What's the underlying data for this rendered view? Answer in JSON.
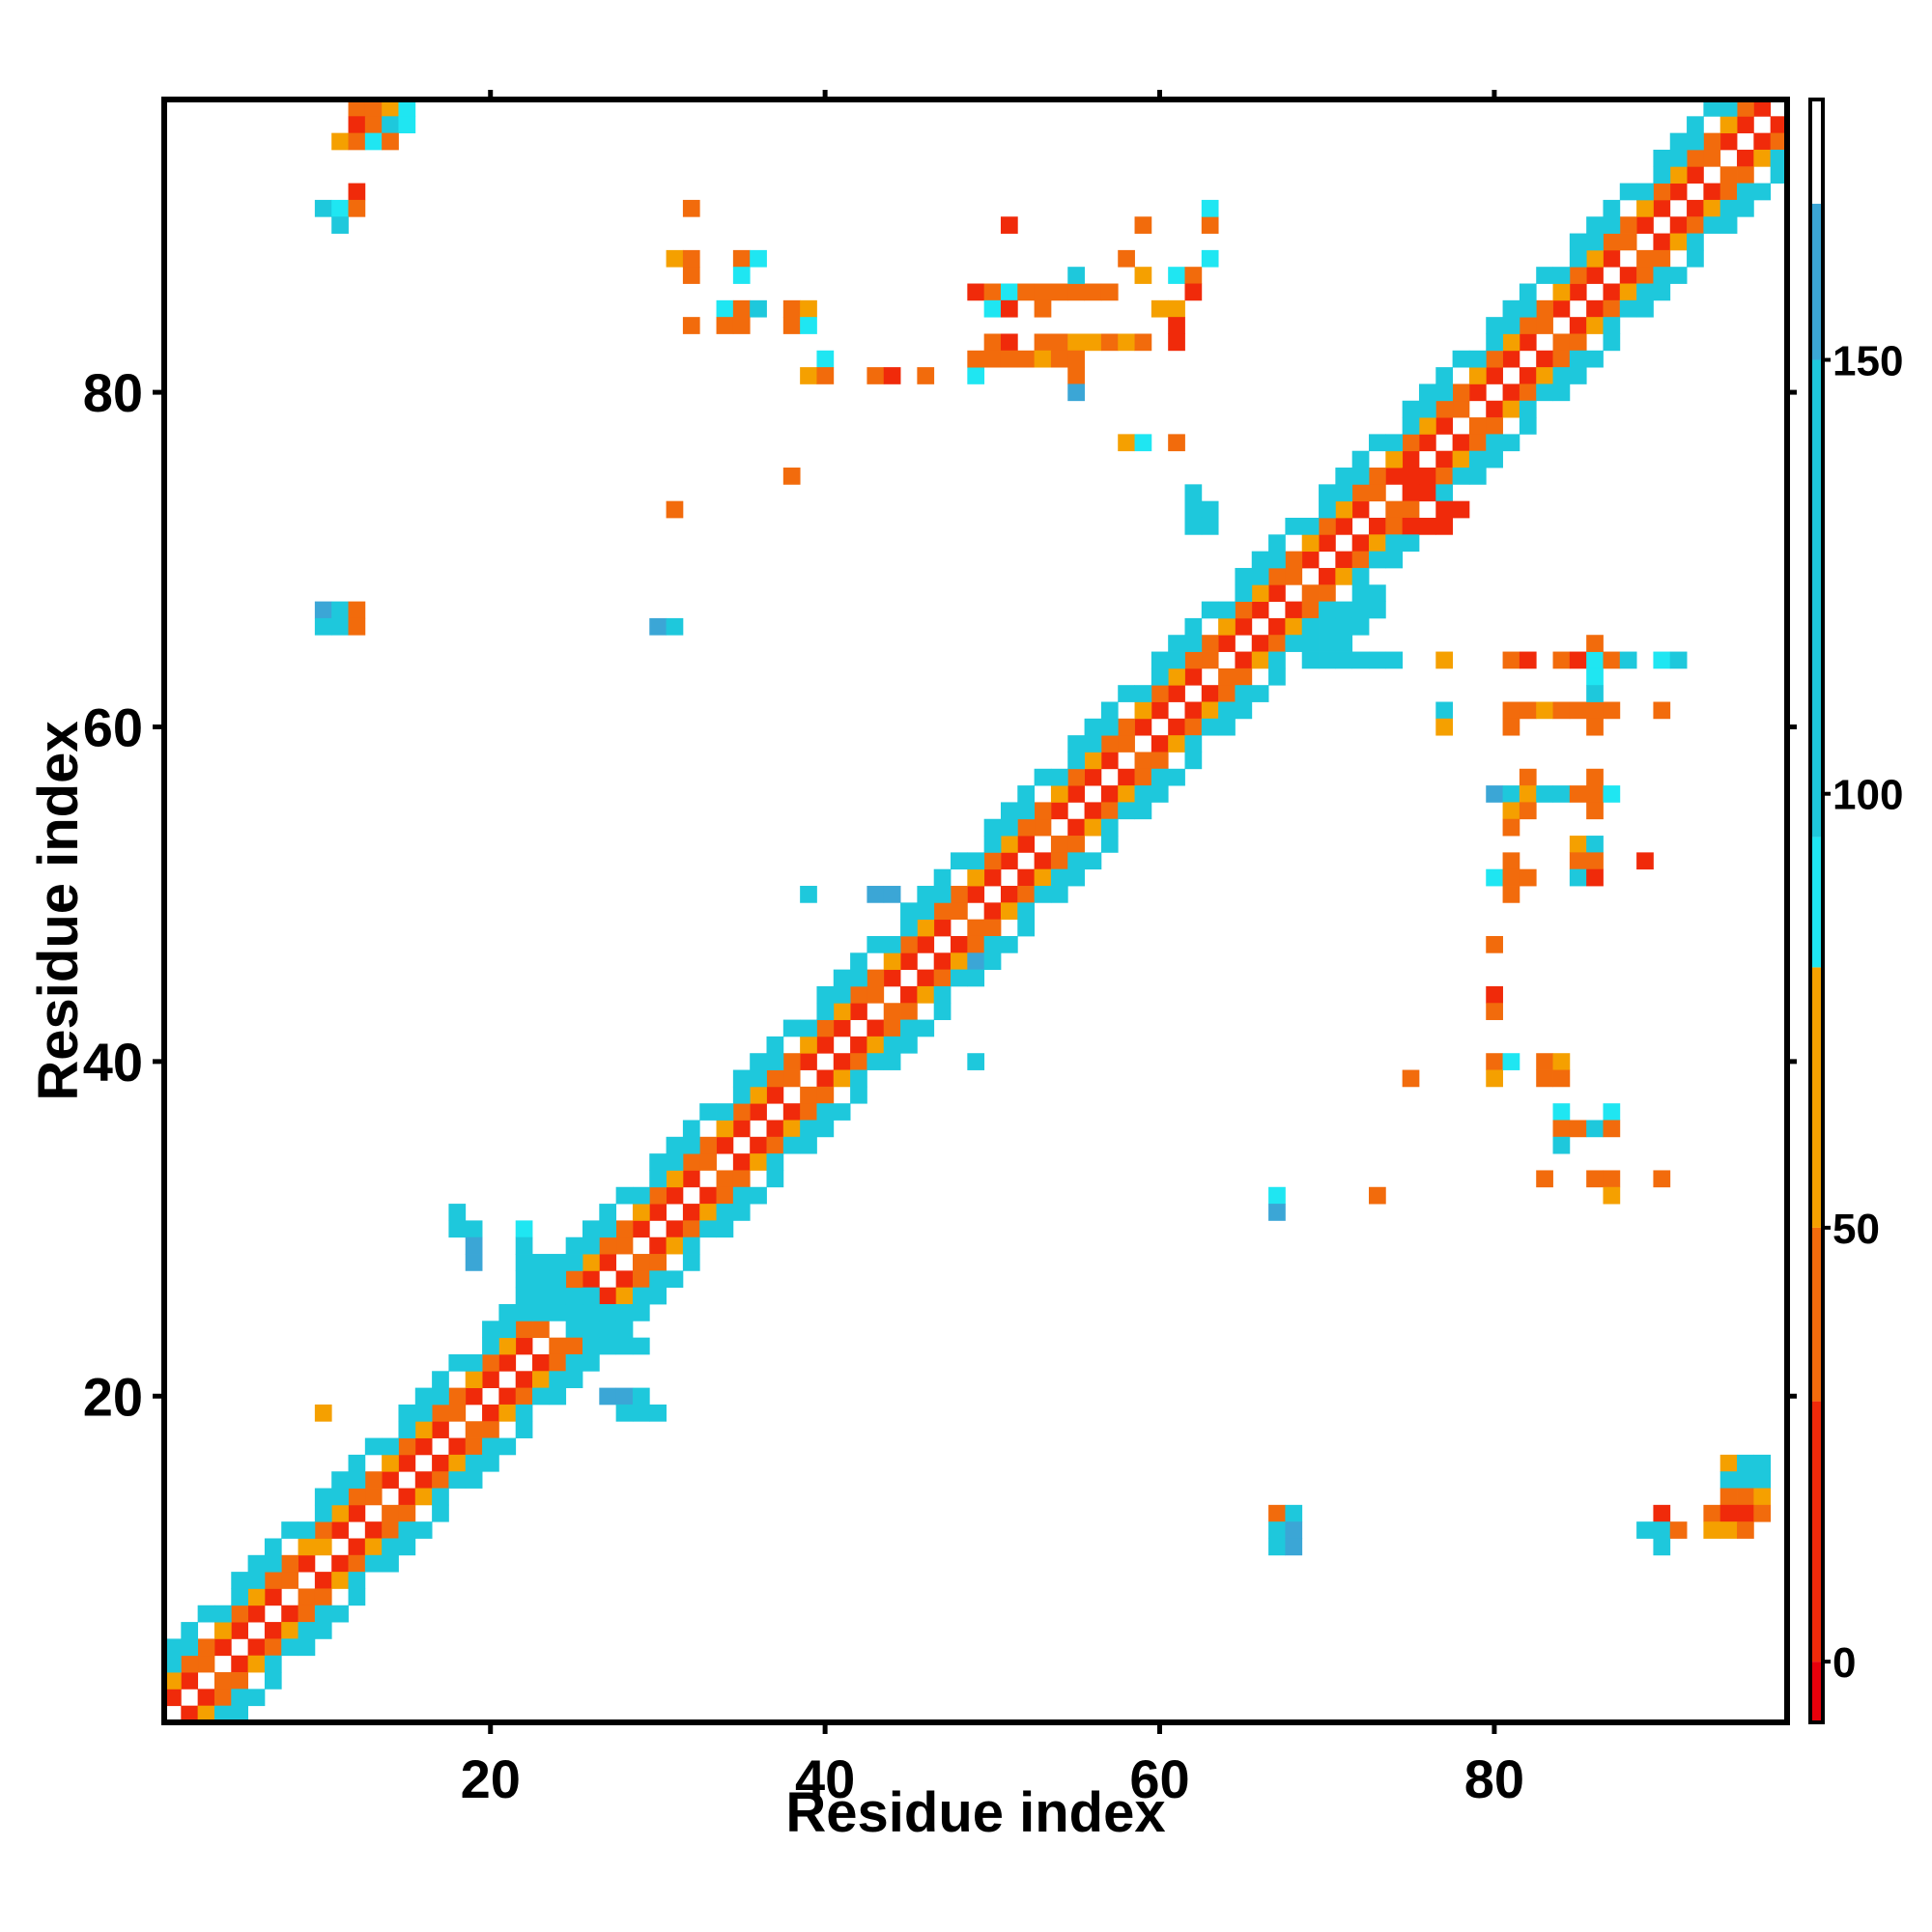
{
  "chart_data": {
    "type": "heatmap",
    "title": "",
    "xlabel": "Residue index",
    "ylabel": "Residue index",
    "xlim": [
      0.5,
      97.5
    ],
    "ylim": [
      0.5,
      97.5
    ],
    "x_ticks": [
      20,
      40,
      60,
      80
    ],
    "y_ticks": [
      20,
      40,
      60,
      80
    ],
    "colorbar": {
      "range": [
        -7,
        180
      ],
      "ticks": [
        0,
        50,
        100,
        150
      ],
      "bands": [
        {
          "from": -7,
          "to": 0,
          "color": "#e8000b"
        },
        {
          "from": 0,
          "to": 30,
          "color": "#f02a0a"
        },
        {
          "from": 30,
          "to": 50,
          "color": "#f26b0c"
        },
        {
          "from": 50,
          "to": 80,
          "color": "#f5a000"
        },
        {
          "from": 80,
          "to": 95,
          "color": "#1fe6f2"
        },
        {
          "from": 95,
          "to": 150,
          "color": "#1ec8dc"
        },
        {
          "from": 150,
          "to": 168,
          "color": "#3ba6d6"
        },
        {
          "from": 168,
          "to": 180,
          "color": "#ffffff"
        }
      ]
    },
    "grid": false,
    "diagonal_bands": [
      {
        "offset": 1,
        "value": 20
      },
      {
        "offset": 2,
        "value": 45
      },
      {
        "offset": 3,
        "value": 100
      },
      {
        "offset": 4,
        "value": 115
      }
    ],
    "cells": [
      [
        12,
        97,
        30
      ],
      [
        13,
        97,
        45
      ],
      [
        14,
        97,
        60
      ],
      [
        15,
        97,
        90
      ],
      [
        12,
        96,
        20
      ],
      [
        13,
        96,
        45
      ],
      [
        14,
        96,
        100
      ],
      [
        15,
        96,
        90
      ],
      [
        11,
        95,
        60
      ],
      [
        12,
        95,
        45
      ],
      [
        13,
        95,
        90
      ],
      [
        14,
        95,
        45
      ],
      [
        12,
        92,
        20
      ],
      [
        10,
        91,
        100
      ],
      [
        11,
        91,
        90
      ],
      [
        12,
        91,
        45
      ],
      [
        11,
        90,
        95
      ],
      [
        32,
        91,
        45
      ],
      [
        31,
        88,
        55
      ],
      [
        32,
        88,
        45
      ],
      [
        35,
        88,
        45
      ],
      [
        36,
        88,
        90
      ],
      [
        32,
        87,
        45
      ],
      [
        35,
        87,
        90
      ],
      [
        34,
        85,
        90
      ],
      [
        35,
        85,
        45
      ],
      [
        36,
        85,
        95
      ],
      [
        38,
        85,
        45
      ],
      [
        39,
        85,
        60
      ],
      [
        38,
        84,
        45
      ],
      [
        39,
        84,
        90
      ],
      [
        32,
        84,
        45
      ],
      [
        34,
        84,
        45
      ],
      [
        35,
        84,
        45
      ],
      [
        40,
        82,
        90
      ],
      [
        39,
        81,
        60
      ],
      [
        40,
        81,
        45
      ],
      [
        43,
        81,
        45
      ],
      [
        44,
        81,
        20
      ],
      [
        46,
        81,
        45
      ],
      [
        49,
        81,
        90
      ],
      [
        49,
        86,
        20
      ],
      [
        50,
        86,
        45
      ],
      [
        51,
        86,
        90
      ],
      [
        52,
        86,
        45
      ],
      [
        53,
        86,
        45
      ],
      [
        54,
        86,
        45
      ],
      [
        55,
        86,
        45
      ],
      [
        56,
        86,
        45
      ],
      [
        57,
        86,
        45
      ],
      [
        55,
        87,
        95
      ],
      [
        59,
        87,
        60
      ],
      [
        61,
        87,
        90
      ],
      [
        62,
        87,
        45
      ],
      [
        62,
        86,
        20
      ],
      [
        60,
        85,
        60
      ],
      [
        61,
        85,
        55
      ],
      [
        63,
        88,
        90
      ],
      [
        58,
        88,
        45
      ],
      [
        53,
        85,
        45
      ],
      [
        50,
        85,
        90
      ],
      [
        51,
        85,
        20
      ],
      [
        50,
        83,
        45
      ],
      [
        51,
        83,
        20
      ],
      [
        53,
        83,
        45
      ],
      [
        54,
        83,
        45
      ],
      [
        55,
        83,
        60
      ],
      [
        56,
        83,
        60
      ],
      [
        57,
        83,
        45
      ],
      [
        58,
        83,
        60
      ],
      [
        59,
        83,
        45
      ],
      [
        61,
        84,
        20
      ],
      [
        61,
        83,
        20
      ],
      [
        49,
        82,
        45
      ],
      [
        50,
        82,
        45
      ],
      [
        51,
        82,
        45
      ],
      [
        52,
        82,
        45
      ],
      [
        53,
        82,
        60
      ],
      [
        54,
        82,
        45
      ],
      [
        55,
        82,
        45
      ],
      [
        55,
        81,
        45
      ],
      [
        55,
        80,
        160
      ],
      [
        51,
        90,
        20
      ],
      [
        59,
        90,
        45
      ],
      [
        63,
        90,
        45
      ],
      [
        63,
        91,
        90
      ],
      [
        58,
        77,
        60
      ],
      [
        59,
        77,
        90
      ],
      [
        61,
        77,
        45
      ],
      [
        38,
        75,
        45
      ],
      [
        31,
        73,
        45
      ],
      [
        10,
        67,
        160
      ],
      [
        11,
        67,
        100
      ],
      [
        12,
        67,
        45
      ],
      [
        10,
        66,
        100
      ],
      [
        11,
        66,
        100
      ],
      [
        12,
        66,
        45
      ],
      [
        30,
        66,
        160
      ],
      [
        31,
        66,
        100
      ],
      [
        62,
        74,
        100
      ],
      [
        62,
        73,
        100
      ],
      [
        63,
        73,
        100
      ],
      [
        62,
        72,
        100
      ],
      [
        63,
        72,
        100
      ],
      [
        67,
        70,
        95
      ],
      [
        66,
        70,
        100
      ],
      [
        66,
        69,
        100
      ],
      [
        65,
        68,
        100
      ],
      [
        72,
        68,
        100
      ],
      [
        73,
        68,
        100
      ],
      [
        72,
        67,
        100
      ],
      [
        73,
        67,
        100
      ],
      [
        71,
        66,
        100
      ],
      [
        72,
        66,
        100
      ],
      [
        70,
        65,
        100
      ],
      [
        71,
        65,
        100
      ],
      [
        69,
        64,
        100
      ],
      [
        70,
        64,
        100
      ],
      [
        71,
        64,
        100
      ],
      [
        72,
        64,
        100
      ],
      [
        73,
        64,
        100
      ],
      [
        74,
        64,
        100
      ],
      [
        77,
        64,
        60
      ],
      [
        81,
        64,
        45
      ],
      [
        82,
        64,
        20
      ],
      [
        84,
        64,
        45
      ],
      [
        85,
        64,
        20
      ],
      [
        86,
        64,
        90
      ],
      [
        87,
        64,
        45
      ],
      [
        88,
        64,
        100
      ],
      [
        90,
        64,
        90
      ],
      [
        91,
        64,
        95
      ],
      [
        86,
        65,
        45
      ],
      [
        86,
        63,
        90
      ],
      [
        77,
        61,
        95
      ],
      [
        77,
        60,
        60
      ],
      [
        81,
        61,
        45
      ],
      [
        82,
        61,
        45
      ],
      [
        83,
        61,
        60
      ],
      [
        84,
        61,
        45
      ],
      [
        85,
        61,
        45
      ],
      [
        86,
        61,
        45
      ],
      [
        87,
        61,
        45
      ],
      [
        90,
        61,
        45
      ],
      [
        81,
        60,
        45
      ],
      [
        86,
        60,
        45
      ],
      [
        86,
        62,
        95
      ],
      [
        82,
        57,
        45
      ],
      [
        86,
        57,
        45
      ],
      [
        80,
        56,
        160
      ],
      [
        81,
        56,
        100
      ],
      [
        82,
        56,
        60
      ],
      [
        83,
        56,
        100
      ],
      [
        84,
        56,
        100
      ],
      [
        85,
        56,
        45
      ],
      [
        86,
        56,
        45
      ],
      [
        87,
        56,
        90
      ],
      [
        81,
        55,
        60
      ],
      [
        82,
        55,
        45
      ],
      [
        86,
        55,
        45
      ],
      [
        81,
        54,
        45
      ],
      [
        85,
        53,
        60
      ],
      [
        86,
        53,
        95
      ],
      [
        81,
        52,
        45
      ],
      [
        85,
        52,
        45
      ],
      [
        86,
        52,
        45
      ],
      [
        89,
        52,
        20
      ],
      [
        80,
        51,
        90
      ],
      [
        81,
        51,
        45
      ],
      [
        82,
        51,
        45
      ],
      [
        85,
        51,
        95
      ],
      [
        86,
        51,
        20
      ],
      [
        81,
        50,
        45
      ],
      [
        80,
        47,
        45
      ],
      [
        80,
        44,
        20
      ],
      [
        80,
        43,
        45
      ],
      [
        80,
        40,
        45
      ],
      [
        80,
        39,
        60
      ],
      [
        81,
        40,
        90
      ],
      [
        83,
        40,
        45
      ],
      [
        84,
        40,
        60
      ],
      [
        83,
        39,
        45
      ],
      [
        84,
        39,
        45
      ],
      [
        75,
        39,
        45
      ],
      [
        84,
        37,
        90
      ],
      [
        84,
        36,
        45
      ],
      [
        85,
        36,
        45
      ],
      [
        84,
        35,
        100
      ],
      [
        87,
        37,
        90
      ],
      [
        86,
        36,
        95
      ],
      [
        87,
        36,
        45
      ],
      [
        83,
        33,
        45
      ],
      [
        86,
        33,
        45
      ],
      [
        87,
        33,
        45
      ],
      [
        87,
        32,
        60
      ],
      [
        90,
        33,
        45
      ],
      [
        73,
        32,
        45
      ],
      [
        67,
        32,
        90
      ],
      [
        67,
        31,
        160
      ],
      [
        49,
        46,
        160
      ],
      [
        49,
        45,
        100
      ],
      [
        49,
        40,
        100
      ],
      [
        39,
        50,
        95
      ],
      [
        43,
        50,
        160
      ],
      [
        44,
        50,
        160
      ],
      [
        18,
        31,
        95
      ],
      [
        18,
        30,
        100
      ],
      [
        19,
        30,
        100
      ],
      [
        19,
        29,
        160
      ],
      [
        19,
        28,
        160
      ],
      [
        22,
        30,
        90
      ],
      [
        22,
        29,
        100
      ],
      [
        22,
        28,
        100
      ],
      [
        23,
        28,
        100
      ],
      [
        24,
        28,
        100
      ],
      [
        22,
        27,
        100
      ],
      [
        23,
        27,
        100
      ],
      [
        24,
        27,
        100
      ],
      [
        22,
        26,
        100
      ],
      [
        23,
        26,
        100
      ],
      [
        24,
        26,
        100
      ],
      [
        25,
        26,
        100
      ],
      [
        26,
        26,
        100
      ],
      [
        23,
        25,
        100
      ],
      [
        24,
        25,
        100
      ],
      [
        25,
        25,
        100
      ],
      [
        26,
        25,
        100
      ],
      [
        27,
        25,
        100
      ],
      [
        25,
        24,
        100
      ],
      [
        26,
        24,
        100
      ],
      [
        27,
        24,
        100
      ],
      [
        28,
        24,
        100
      ],
      [
        26,
        23,
        100
      ],
      [
        27,
        23,
        100
      ],
      [
        28,
        23,
        100
      ],
      [
        29,
        23,
        100
      ],
      [
        27,
        20,
        160
      ],
      [
        28,
        20,
        160
      ],
      [
        29,
        20,
        100
      ],
      [
        28,
        19,
        95
      ],
      [
        29,
        19,
        100
      ],
      [
        30,
        19,
        95
      ],
      [
        10,
        19,
        60
      ],
      [
        10,
        11,
        60
      ],
      [
        67,
        13,
        45
      ],
      [
        68,
        13,
        95
      ],
      [
        67,
        12,
        100
      ],
      [
        68,
        12,
        160
      ],
      [
        67,
        11,
        100
      ],
      [
        68,
        11,
        160
      ],
      [
        90,
        13,
        20
      ],
      [
        89,
        12,
        95
      ],
      [
        90,
        12,
        100
      ],
      [
        91,
        12,
        45
      ],
      [
        90,
        11,
        95
      ],
      [
        94,
        16,
        60
      ],
      [
        95,
        16,
        95
      ],
      [
        96,
        16,
        100
      ],
      [
        94,
        15,
        100
      ],
      [
        95,
        15,
        100
      ],
      [
        96,
        15,
        100
      ],
      [
        94,
        14,
        45
      ],
      [
        95,
        14,
        45
      ],
      [
        96,
        14,
        60
      ],
      [
        93,
        13,
        45
      ],
      [
        94,
        13,
        20
      ],
      [
        95,
        13,
        20
      ],
      [
        96,
        13,
        45
      ],
      [
        93,
        12,
        60
      ],
      [
        94,
        12,
        60
      ],
      [
        95,
        12,
        45
      ],
      [
        74,
        75,
        20
      ],
      [
        75,
        75,
        20
      ],
      [
        76,
        74,
        20
      ],
      [
        77,
        73,
        20
      ],
      [
        78,
        73,
        20
      ],
      [
        77,
        74,
        100
      ],
      [
        75,
        72,
        20
      ],
      [
        76,
        72,
        20
      ],
      [
        77,
        72,
        20
      ]
    ]
  }
}
